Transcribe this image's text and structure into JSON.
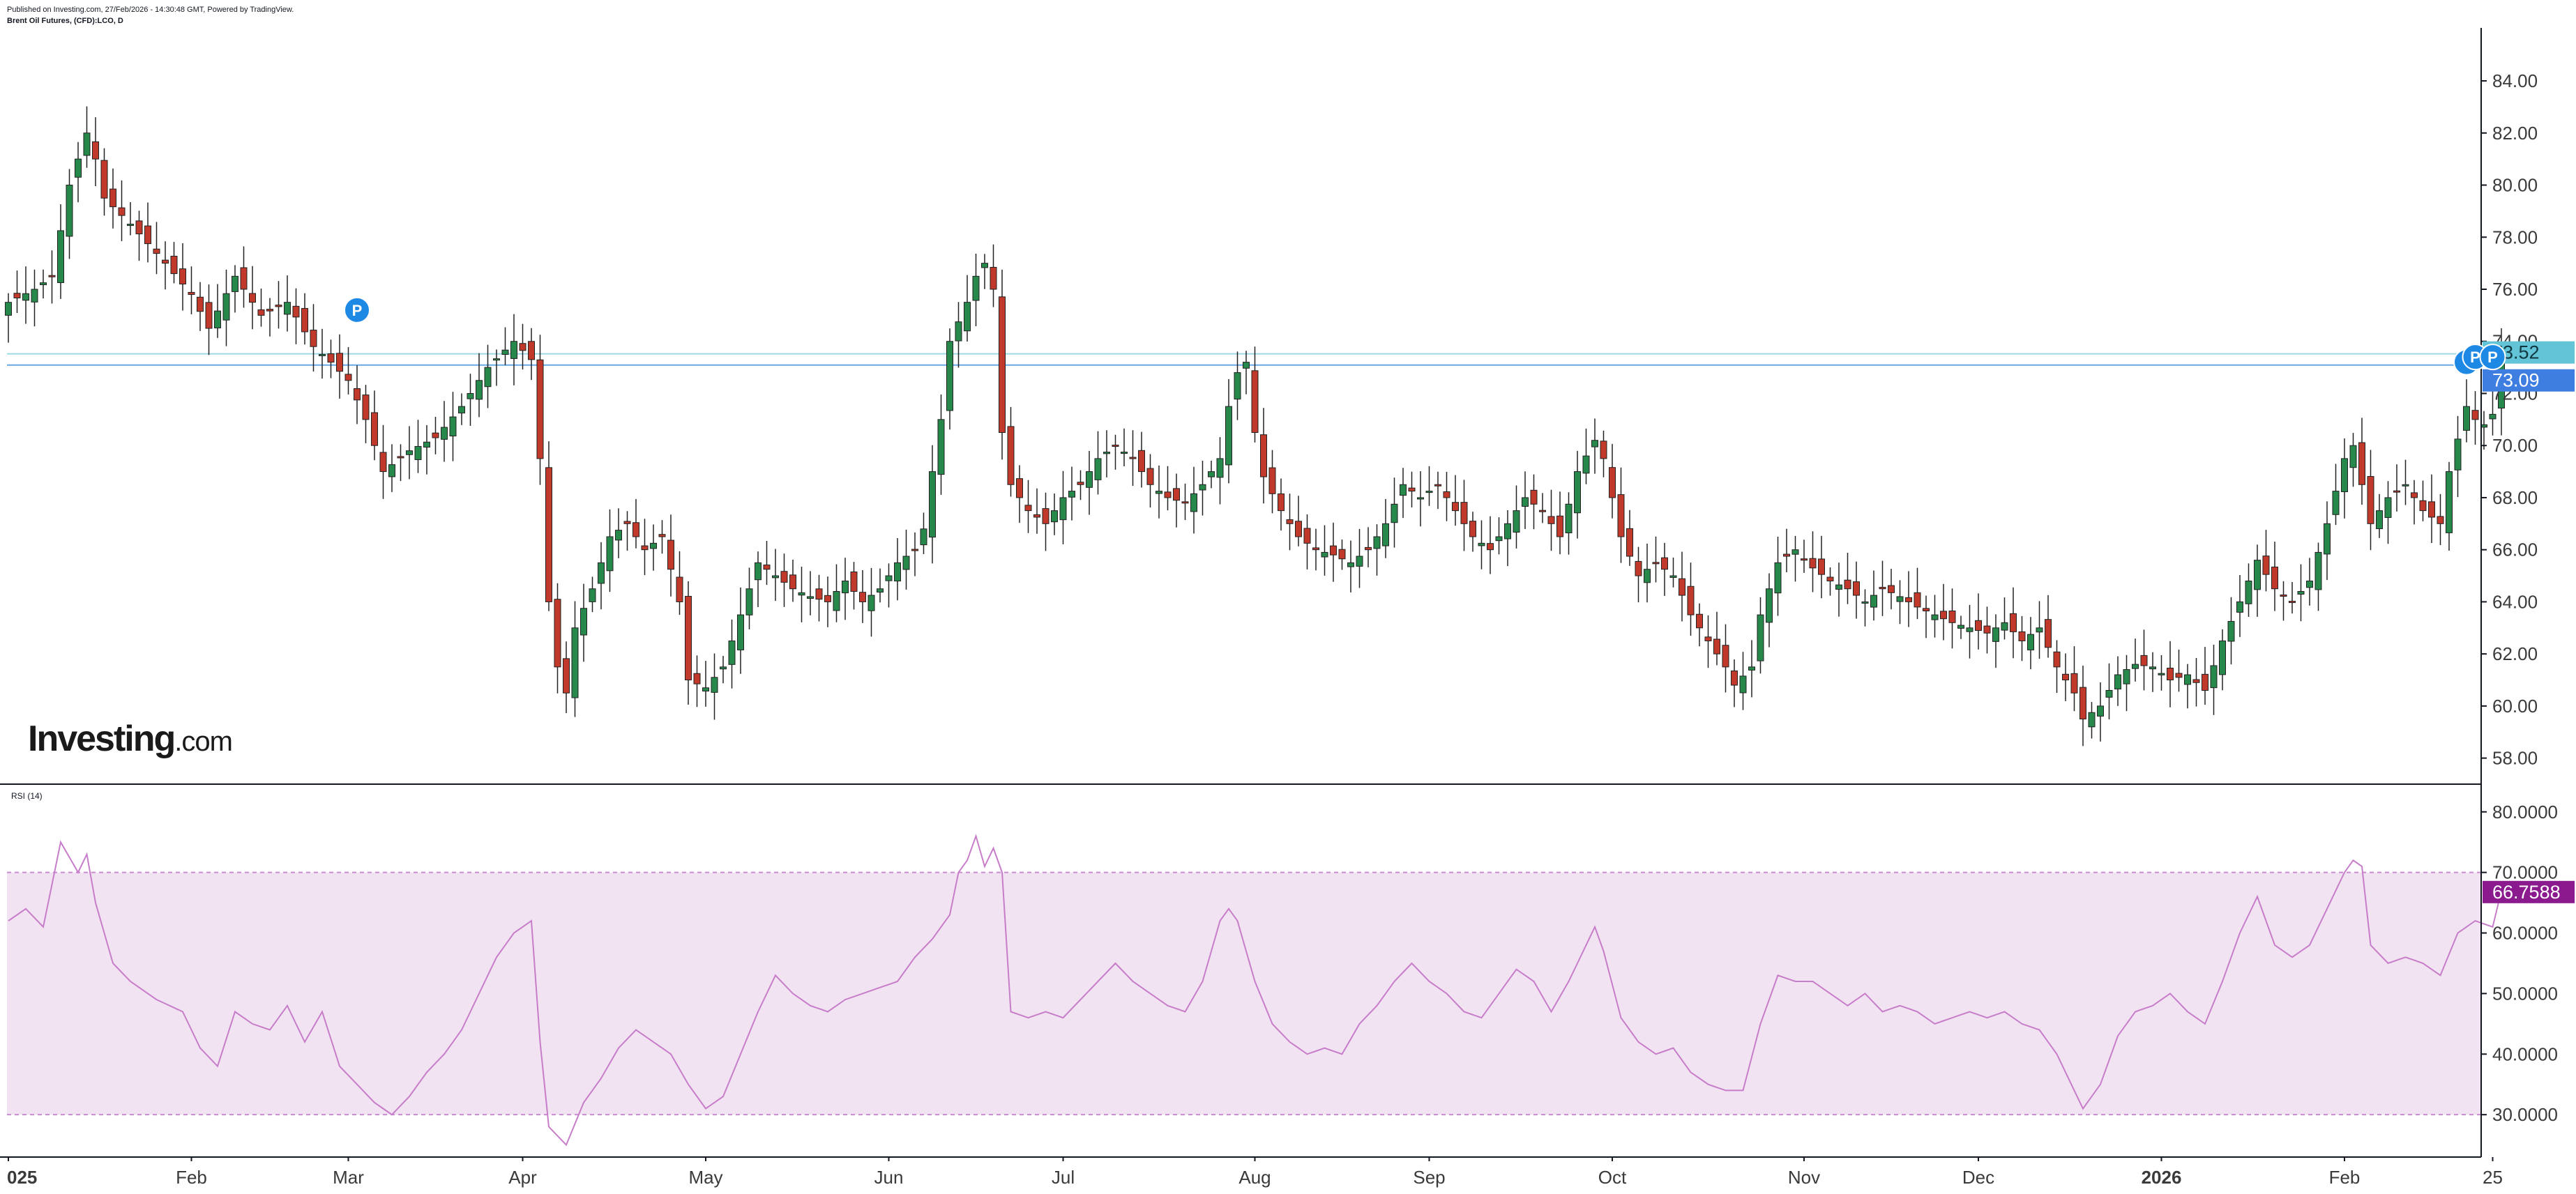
{
  "header": {
    "published": "Published on Investing.com, 27/Feb/2026 - 14:30:48 GMT, Powered by TradingView.",
    "symbol": "Brent Oil Futures, (CFD):LCO, D"
  },
  "logo": {
    "brand": "Investing",
    "tld": ".com"
  },
  "colors": {
    "up": "#26894b",
    "down": "#c0392b",
    "rsi_line": "#c77dc9",
    "rsi_band": "#f1e3f2",
    "rsi_band_border": "#c98bd0",
    "price_line": "#4aa3df",
    "price_tag_last": "#62c4d6",
    "price_tag_close": "#3d7ee0",
    "rsi_tag": "#8b1a8e",
    "marker": "#1e88e5",
    "axis": "#131722"
  },
  "chart_data": [
    {
      "type": "candlestick",
      "title": "Brent Oil Futures, (CFD):LCO, D",
      "y_axis_ticks": [
        "84.00",
        "82.00",
        "80.00",
        "78.00",
        "76.00",
        "74.00",
        "72.00",
        "70.00",
        "68.00",
        "66.00",
        "64.00",
        "62.00",
        "60.00",
        "58.00"
      ],
      "ylim": [
        57.0,
        85.5
      ],
      "x_axis_labels": [
        {
          "label": "025",
          "index": 0,
          "bold": true
        },
        {
          "label": "Feb",
          "index": 21
        },
        {
          "label": "Mar",
          "index": 39
        },
        {
          "label": "Apr",
          "index": 59
        },
        {
          "label": "May",
          "index": 80
        },
        {
          "label": "Jun",
          "index": 101
        },
        {
          "label": "Jul",
          "index": 121
        },
        {
          "label": "Aug",
          "index": 143
        },
        {
          "label": "Sep",
          "index": 163
        },
        {
          "label": "Oct",
          "index": 184
        },
        {
          "label": "Nov",
          "index": 206
        },
        {
          "label": "Dec",
          "index": 226
        },
        {
          "label": "2026",
          "index": 247,
          "bold": true
        },
        {
          "label": "Feb",
          "index": 268
        },
        {
          "label": "25",
          "index": 285
        }
      ],
      "price_levels": [
        {
          "value": 73.52,
          "label": "73.52"
        },
        {
          "value": 73.09,
          "label": "73.09"
        }
      ],
      "markers": [
        {
          "index": 40,
          "price": 75.2,
          "label": "P"
        },
        {
          "index": 282,
          "price": 73.2,
          "label": ""
        },
        {
          "index": 283,
          "price": 73.4,
          "label": "P"
        },
        {
          "index": 285,
          "price": 73.4,
          "label": "P"
        }
      ],
      "anchors": [
        [
          0,
          75.5
        ],
        [
          3,
          76.0
        ],
        [
          5,
          76.5
        ],
        [
          7,
          80.0
        ],
        [
          9,
          82.0
        ],
        [
          10,
          81.0
        ],
        [
          11,
          79.5
        ],
        [
          14,
          78.5
        ],
        [
          18,
          77.0
        ],
        [
          21,
          75.8
        ],
        [
          23,
          74.5
        ],
        [
          26,
          76.5
        ],
        [
          29,
          75.0
        ],
        [
          32,
          75.5
        ],
        [
          35,
          73.8
        ],
        [
          37,
          73.2
        ],
        [
          39,
          72.5
        ],
        [
          41,
          71.0
        ],
        [
          43,
          69.0
        ],
        [
          46,
          69.8
        ],
        [
          49,
          70.3
        ],
        [
          52,
          71.5
        ],
        [
          55,
          73.0
        ],
        [
          58,
          74.0
        ],
        [
          60,
          73.3
        ],
        [
          61,
          69.5
        ],
        [
          62,
          64.0
        ],
        [
          63,
          61.5
        ],
        [
          64,
          60.5
        ],
        [
          65,
          63.0
        ],
        [
          67,
          64.5
        ],
        [
          69,
          66.5
        ],
        [
          71,
          67.0
        ],
        [
          73,
          66.0
        ],
        [
          75,
          66.5
        ],
        [
          77,
          64.0
        ],
        [
          78,
          61.0
        ],
        [
          80,
          60.7
        ],
        [
          82,
          61.5
        ],
        [
          84,
          63.5
        ],
        [
          86,
          65.5
        ],
        [
          88,
          65.0
        ],
        [
          90,
          64.5
        ],
        [
          92,
          64.2
        ],
        [
          94,
          64.0
        ],
        [
          96,
          64.8
        ],
        [
          98,
          64.0
        ],
        [
          100,
          64.5
        ],
        [
          102,
          65.5
        ],
        [
          104,
          66.0
        ],
        [
          105,
          66.8
        ],
        [
          106,
          69.0
        ],
        [
          107,
          71.0
        ],
        [
          108,
          74.0
        ],
        [
          110,
          75.5
        ],
        [
          111,
          76.5
        ],
        [
          112,
          77.0
        ],
        [
          113,
          76.0
        ],
        [
          114,
          70.5
        ],
        [
          115,
          68.5
        ],
        [
          117,
          67.5
        ],
        [
          119,
          67.0
        ],
        [
          121,
          68.0
        ],
        [
          123,
          68.5
        ],
        [
          125,
          69.5
        ],
        [
          127,
          70.0
        ],
        [
          129,
          69.5
        ],
        [
          131,
          68.5
        ],
        [
          133,
          68.0
        ],
        [
          135,
          67.8
        ],
        [
          137,
          68.5
        ],
        [
          139,
          69.5
        ],
        [
          140,
          71.5
        ],
        [
          141,
          72.8
        ],
        [
          142,
          73.2
        ],
        [
          143,
          70.5
        ],
        [
          144,
          68.8
        ],
        [
          146,
          67.5
        ],
        [
          148,
          66.5
        ],
        [
          150,
          66.0
        ],
        [
          152,
          65.8
        ],
        [
          154,
          65.5
        ],
        [
          156,
          66.0
        ],
        [
          158,
          67.0
        ],
        [
          160,
          68.5
        ],
        [
          162,
          68.0
        ],
        [
          164,
          68.5
        ],
        [
          166,
          67.5
        ],
        [
          168,
          66.5
        ],
        [
          170,
          66.0
        ],
        [
          172,
          67.0
        ],
        [
          174,
          68.0
        ],
        [
          176,
          67.5
        ],
        [
          178,
          66.5
        ],
        [
          180,
          69.0
        ],
        [
          182,
          70.2
        ],
        [
          183,
          69.5
        ],
        [
          184,
          68.0
        ],
        [
          185,
          66.5
        ],
        [
          187,
          65.0
        ],
        [
          189,
          65.5
        ],
        [
          191,
          65.0
        ],
        [
          193,
          63.5
        ],
        [
          195,
          62.5
        ],
        [
          197,
          61.5
        ],
        [
          198,
          60.8
        ],
        [
          200,
          61.5
        ],
        [
          201,
          63.5
        ],
        [
          203,
          65.5
        ],
        [
          205,
          66.0
        ],
        [
          207,
          65.3
        ],
        [
          209,
          64.8
        ],
        [
          211,
          64.5
        ],
        [
          213,
          64.0
        ],
        [
          215,
          64.5
        ],
        [
          217,
          64.2
        ],
        [
          219,
          63.8
        ],
        [
          221,
          63.5
        ],
        [
          223,
          63.2
        ],
        [
          225,
          63.0
        ],
        [
          227,
          62.8
        ],
        [
          229,
          63.2
        ],
        [
          231,
          62.5
        ],
        [
          233,
          63.0
        ],
        [
          235,
          61.5
        ],
        [
          237,
          60.5
        ],
        [
          238,
          59.5
        ],
        [
          240,
          60.0
        ],
        [
          242,
          61.2
        ],
        [
          244,
          61.6
        ],
        [
          246,
          61.5
        ],
        [
          248,
          61.0
        ],
        [
          250,
          61.2
        ],
        [
          252,
          60.6
        ],
        [
          254,
          62.5
        ],
        [
          256,
          64.0
        ],
        [
          258,
          65.6
        ],
        [
          260,
          64.5
        ],
        [
          262,
          64.0
        ],
        [
          264,
          64.8
        ],
        [
          266,
          67.0
        ],
        [
          268,
          69.5
        ],
        [
          269,
          70.0
        ],
        [
          270,
          68.5
        ],
        [
          271,
          67.0
        ],
        [
          273,
          68.0
        ],
        [
          275,
          68.5
        ],
        [
          277,
          67.5
        ],
        [
          279,
          67.0
        ],
        [
          280,
          69.0
        ],
        [
          282,
          71.5
        ],
        [
          283,
          71.0
        ],
        [
          284,
          70.8
        ],
        [
          285,
          71.2
        ],
        [
          286,
          73.5
        ]
      ],
      "rsi": {
        "name": "RSI (14)",
        "value_label": "66.7588",
        "y_axis_ticks": [
          "80.0000",
          "70.0000",
          "60.0000",
          "50.0000",
          "40.0000",
          "30.0000"
        ],
        "ylim": [
          23,
          84
        ],
        "band": [
          30,
          70
        ],
        "anchors": [
          [
            0,
            62
          ],
          [
            2,
            64
          ],
          [
            4,
            61
          ],
          [
            6,
            75
          ],
          [
            8,
            70
          ],
          [
            9,
            73
          ],
          [
            10,
            65
          ],
          [
            12,
            55
          ],
          [
            14,
            52
          ],
          [
            17,
            49
          ],
          [
            20,
            47
          ],
          [
            22,
            41
          ],
          [
            24,
            38
          ],
          [
            26,
            47
          ],
          [
            28,
            45
          ],
          [
            30,
            44
          ],
          [
            32,
            48
          ],
          [
            34,
            42
          ],
          [
            36,
            47
          ],
          [
            38,
            38
          ],
          [
            40,
            35
          ],
          [
            42,
            32
          ],
          [
            44,
            30
          ],
          [
            46,
            33
          ],
          [
            48,
            37
          ],
          [
            50,
            40
          ],
          [
            52,
            44
          ],
          [
            54,
            50
          ],
          [
            56,
            56
          ],
          [
            58,
            60
          ],
          [
            60,
            62
          ],
          [
            61,
            42
          ],
          [
            62,
            28
          ],
          [
            64,
            25
          ],
          [
            66,
            32
          ],
          [
            68,
            36
          ],
          [
            70,
            41
          ],
          [
            72,
            44
          ],
          [
            74,
            42
          ],
          [
            76,
            40
          ],
          [
            78,
            35
          ],
          [
            80,
            31
          ],
          [
            82,
            33
          ],
          [
            84,
            40
          ],
          [
            86,
            47
          ],
          [
            88,
            53
          ],
          [
            90,
            50
          ],
          [
            92,
            48
          ],
          [
            94,
            47
          ],
          [
            96,
            49
          ],
          [
            98,
            50
          ],
          [
            100,
            51
          ],
          [
            102,
            52
          ],
          [
            104,
            56
          ],
          [
            106,
            59
          ],
          [
            108,
            63
          ],
          [
            109,
            70
          ],
          [
            110,
            72
          ],
          [
            111,
            76
          ],
          [
            112,
            71
          ],
          [
            113,
            74
          ],
          [
            114,
            70
          ],
          [
            115,
            47
          ],
          [
            117,
            46
          ],
          [
            119,
            47
          ],
          [
            121,
            46
          ],
          [
            123,
            49
          ],
          [
            125,
            52
          ],
          [
            127,
            55
          ],
          [
            129,
            52
          ],
          [
            131,
            50
          ],
          [
            133,
            48
          ],
          [
            135,
            47
          ],
          [
            137,
            52
          ],
          [
            139,
            62
          ],
          [
            140,
            64
          ],
          [
            141,
            62
          ],
          [
            143,
            52
          ],
          [
            145,
            45
          ],
          [
            147,
            42
          ],
          [
            149,
            40
          ],
          [
            151,
            41
          ],
          [
            153,
            40
          ],
          [
            155,
            45
          ],
          [
            157,
            48
          ],
          [
            159,
            52
          ],
          [
            161,
            55
          ],
          [
            163,
            52
          ],
          [
            165,
            50
          ],
          [
            167,
            47
          ],
          [
            169,
            46
          ],
          [
            171,
            50
          ],
          [
            173,
            54
          ],
          [
            175,
            52
          ],
          [
            177,
            47
          ],
          [
            179,
            52
          ],
          [
            181,
            58
          ],
          [
            182,
            61
          ],
          [
            183,
            57
          ],
          [
            185,
            46
          ],
          [
            187,
            42
          ],
          [
            189,
            40
          ],
          [
            191,
            41
          ],
          [
            193,
            37
          ],
          [
            195,
            35
          ],
          [
            197,
            34
          ],
          [
            199,
            34
          ],
          [
            201,
            45
          ],
          [
            203,
            53
          ],
          [
            205,
            52
          ],
          [
            207,
            52
          ],
          [
            209,
            50
          ],
          [
            211,
            48
          ],
          [
            213,
            50
          ],
          [
            215,
            47
          ],
          [
            217,
            48
          ],
          [
            219,
            47
          ],
          [
            221,
            45
          ],
          [
            223,
            46
          ],
          [
            225,
            47
          ],
          [
            227,
            46
          ],
          [
            229,
            47
          ],
          [
            231,
            45
          ],
          [
            233,
            44
          ],
          [
            235,
            40
          ],
          [
            236,
            37
          ],
          [
            238,
            31
          ],
          [
            240,
            35
          ],
          [
            242,
            43
          ],
          [
            244,
            47
          ],
          [
            246,
            48
          ],
          [
            248,
            50
          ],
          [
            250,
            47
          ],
          [
            252,
            45
          ],
          [
            254,
            52
          ],
          [
            256,
            60
          ],
          [
            258,
            66
          ],
          [
            260,
            58
          ],
          [
            262,
            56
          ],
          [
            264,
            58
          ],
          [
            266,
            64
          ],
          [
            268,
            70
          ],
          [
            269,
            72
          ],
          [
            270,
            71
          ],
          [
            271,
            58
          ],
          [
            273,
            55
          ],
          [
            275,
            56
          ],
          [
            277,
            55
          ],
          [
            279,
            53
          ],
          [
            281,
            60
          ],
          [
            283,
            62
          ],
          [
            285,
            61
          ],
          [
            286,
            67
          ]
        ]
      }
    }
  ]
}
